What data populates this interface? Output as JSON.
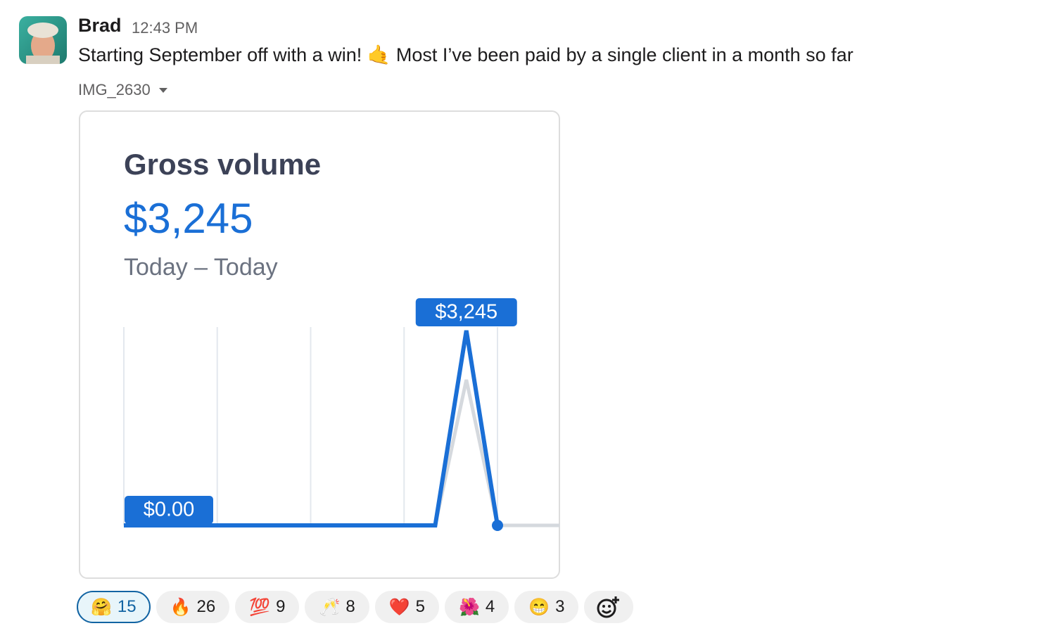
{
  "message": {
    "author": "Brad",
    "time": "12:43 PM",
    "text": "Starting September off with a win! 🤙 Most I’ve been paid by a single client in a month so far",
    "attachment": {
      "name": "IMG_2630",
      "image": {
        "title": "Gross volume",
        "amount": "$3,245",
        "date_range": "Today – Today",
        "chart_data": {
          "type": "line",
          "ylim": [
            0,
            3245
          ],
          "xticks": [
            0,
            3,
            6,
            9,
            12
          ],
          "grid": true,
          "series": [
            {
              "color": "#d5d9de",
              "values": [
                0,
                0,
                0,
                0,
                0,
                0,
                0,
                0,
                0,
                0,
                0,
                2425,
                0,
                0,
                0
              ]
            },
            {
              "color": "#1a6fd6",
              "values": [
                0,
                0,
                0,
                0,
                0,
                0,
                0,
                0,
                0,
                0,
                0,
                3245,
                0
              ],
              "value_labels": [
                "$0.00",
                null,
                null,
                null,
                null,
                null,
                null,
                null,
                null,
                null,
                null,
                "$3,245",
                null
              ]
            }
          ]
        }
      }
    }
  },
  "reactions": [
    {
      "emoji": "🤗",
      "count": 15,
      "selected": true
    },
    {
      "emoji": "🔥",
      "count": 26,
      "selected": false
    },
    {
      "emoji": "💯",
      "count": 9,
      "selected": false
    },
    {
      "emoji": "🥂",
      "count": 8,
      "selected": false
    },
    {
      "emoji": "❤️",
      "count": 5,
      "selected": false
    },
    {
      "emoji": "🌺",
      "count": 4,
      "selected": false
    },
    {
      "emoji": "😁",
      "count": 3,
      "selected": false
    }
  ]
}
